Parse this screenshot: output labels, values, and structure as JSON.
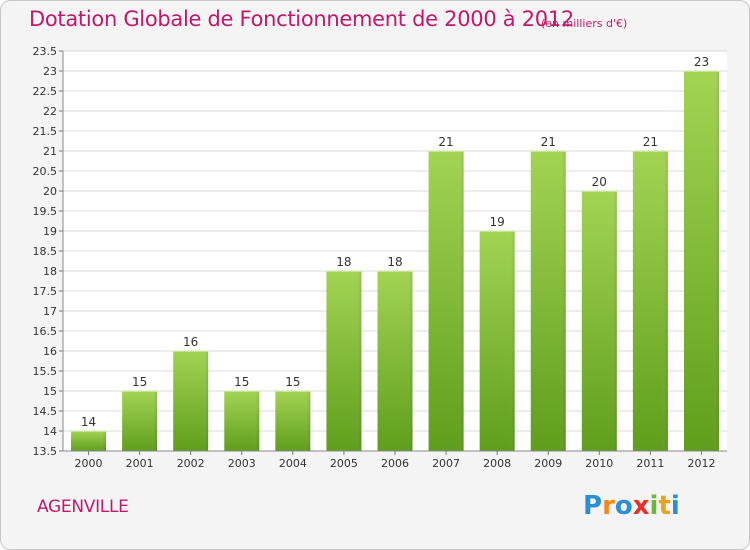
{
  "header": {
    "title": "Dotation Globale de Fonctionnement de 2000 à 2012",
    "subtitle": "(en milliers d'€)"
  },
  "footer": {
    "place": "AGENVILLE",
    "logo_text": "Proxiti"
  },
  "colors": {
    "accent": "#c0186a",
    "bar_top": "#a3d454",
    "bar_bottom": "#5f9e1c",
    "grid": "#d8d8d8",
    "axis_text": "#333333"
  },
  "chart_data": {
    "type": "bar",
    "title": "Dotation Globale de Fonctionnement de 2000 à 2012",
    "subtitle": "(en milliers d'€)",
    "categories": [
      "2000",
      "2001",
      "2002",
      "2003",
      "2004",
      "2005",
      "2006",
      "2007",
      "2008",
      "2009",
      "2010",
      "2011",
      "2012"
    ],
    "values": [
      14,
      15,
      16,
      15,
      15,
      18,
      18,
      21,
      19,
      21,
      20,
      21,
      23
    ],
    "data_labels": [
      "14",
      "15",
      "16",
      "15",
      "15",
      "18",
      "18",
      "21",
      "19",
      "21",
      "20",
      "21",
      "23"
    ],
    "ylim": [
      13.5,
      23.5
    ],
    "yticks": [
      "13.5",
      "14",
      "14.5",
      "15",
      "15.5",
      "16",
      "16.5",
      "17",
      "17.5",
      "18",
      "18.5",
      "19",
      "19.5",
      "20",
      "20.5",
      "21",
      "21.5",
      "22",
      "22.5",
      "23",
      "23.5"
    ],
    "xlabel": "",
    "ylabel": "",
    "grid": true,
    "legend": "none"
  }
}
